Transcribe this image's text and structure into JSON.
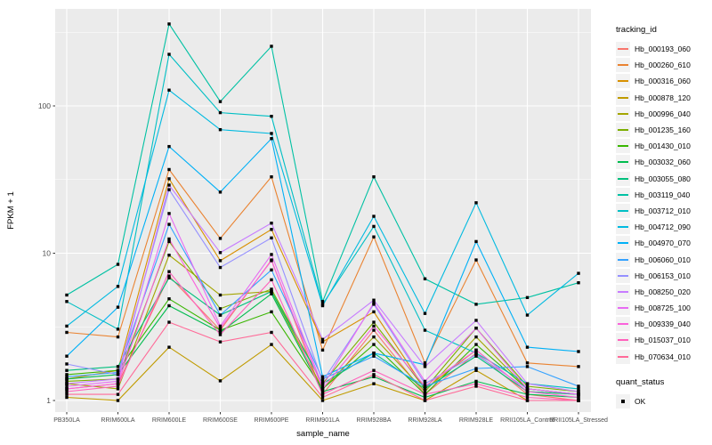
{
  "chart_data": {
    "type": "line",
    "title": "",
    "xlabel": "sample_name",
    "ylabel": "FPKM + 1",
    "y_scale": "log10",
    "y_ticks": [
      1,
      10,
      100
    ],
    "ylim": [
      1,
      455
    ],
    "grid": true,
    "legend_position": "right",
    "panel_background": "#EBEBEB",
    "gridline_color": "#FFFFFF",
    "tick_label_color": "#4d4d4d",
    "point_color": "#000000",
    "legend_title": "tracking_id",
    "categories": [
      "PB350LA",
      "RRIM600LA",
      "RRIM600LE",
      "RRIM600SE",
      "RRIM600PE",
      "RRIM901LA",
      "RRIM928BA",
      "RRIM928LA",
      "RRIM928LE",
      "RRII105LA_Control",
      "RRII105LA_Stressed"
    ],
    "series": [
      {
        "name": "Hb_000193_060",
        "color": "#F8766D",
        "values": [
          1.2,
          1.3,
          7.0,
          3.0,
          9.0,
          1.1,
          3.0,
          1.1,
          2.1,
          1.1,
          1.0
        ]
      },
      {
        "name": "Hb_000260_610",
        "color": "#EA8331",
        "values": [
          2.9,
          2.7,
          37,
          12.6,
          33,
          2.2,
          12.9,
          1.8,
          9.0,
          1.8,
          1.7
        ]
      },
      {
        "name": "Hb_000316_060",
        "color": "#D89000",
        "values": [
          1.4,
          1.6,
          32,
          8.9,
          14.5,
          2.5,
          4.0,
          1.2,
          2.2,
          1.15,
          1.1
        ]
      },
      {
        "name": "Hb_000878_120",
        "color": "#C09B00",
        "values": [
          1.05,
          1.0,
          2.3,
          1.36,
          2.4,
          1.0,
          1.3,
          1.0,
          1.6,
          1.0,
          1.0
        ]
      },
      {
        "name": "Hb_000996_040",
        "color": "#A3A500",
        "values": [
          1.3,
          1.2,
          9.7,
          5.2,
          5.5,
          1.2,
          2.7,
          1.15,
          2.7,
          1.2,
          1.1
        ]
      },
      {
        "name": "Hb_001235_160",
        "color": "#7CAE00",
        "values": [
          1.35,
          1.4,
          12.0,
          4.2,
          5.7,
          1.3,
          3.4,
          1.2,
          3.1,
          1.25,
          1.15
        ]
      },
      {
        "name": "Hb_001430_010",
        "color": "#39B600",
        "values": [
          1.5,
          1.6,
          4.9,
          3.0,
          4.0,
          1.2,
          2.4,
          1.1,
          2.4,
          1.2,
          1.1
        ]
      },
      {
        "name": "Hb_003032_060",
        "color": "#00BB4E",
        "values": [
          1.4,
          1.5,
          4.4,
          2.9,
          5.3,
          1.15,
          1.45,
          1.05,
          1.35,
          1.1,
          1.05
        ]
      },
      {
        "name": "Hb_003055_080",
        "color": "#00BF7D",
        "values": [
          1.6,
          1.7,
          6.8,
          3.8,
          5.5,
          1.3,
          2.1,
          1.2,
          2.0,
          1.15,
          1.1
        ]
      },
      {
        "name": "Hb_003119_040",
        "color": "#00C1A3",
        "values": [
          5.2,
          8.4,
          360,
          107,
          254,
          4.7,
          33,
          6.7,
          4.5,
          5.0,
          6.3
        ]
      },
      {
        "name": "Hb_003712_010",
        "color": "#00BFC4",
        "values": [
          4.7,
          3.05,
          224,
          90,
          85,
          4.5,
          15.2,
          3.0,
          2.1,
          1.3,
          1.2
        ]
      },
      {
        "name": "Hb_004712_090",
        "color": "#00BAE0",
        "values": [
          3.2,
          5.95,
          128,
          69,
          65,
          4.4,
          17.8,
          3.9,
          22,
          3.8,
          7.3
        ]
      },
      {
        "name": "Hb_004970_070",
        "color": "#00B0F6",
        "values": [
          2.0,
          4.3,
          53,
          26,
          60,
          1.45,
          2.1,
          1.75,
          12,
          2.3,
          2.15
        ]
      },
      {
        "name": "Hb_006060_010",
        "color": "#35A2FF",
        "values": [
          1.45,
          1.55,
          15.7,
          3.8,
          7.7,
          1.4,
          2.0,
          1.25,
          1.65,
          1.7,
          1.25
        ]
      },
      {
        "name": "Hb_006153_010",
        "color": "#9590FF",
        "values": [
          1.77,
          1.5,
          27,
          8.0,
          12.7,
          1.35,
          4.5,
          1.3,
          2.05,
          1.2,
          1.1
        ]
      },
      {
        "name": "Hb_008250_020",
        "color": "#C77CFF",
        "values": [
          1.3,
          1.4,
          29,
          10.1,
          16,
          2.6,
          4.8,
          1.7,
          3.5,
          1.3,
          1.15
        ]
      },
      {
        "name": "Hb_008725_100",
        "color": "#E76BF3",
        "values": [
          1.25,
          1.35,
          18.6,
          3.2,
          9.8,
          1.25,
          4.6,
          1.35,
          3.1,
          1.2,
          1.1
        ]
      },
      {
        "name": "Hb_009339_040",
        "color": "#FA62DB",
        "values": [
          1.2,
          1.3,
          12.5,
          3.1,
          8.9,
          1.2,
          3.2,
          1.25,
          2.2,
          1.15,
          1.05
        ]
      },
      {
        "name": "Hb_015037_010",
        "color": "#FF62BC",
        "values": [
          1.15,
          1.25,
          7.5,
          2.8,
          6.6,
          1.1,
          1.6,
          1.1,
          1.3,
          1.05,
          1.0
        ]
      },
      {
        "name": "Hb_070634_010",
        "color": "#FF6A98",
        "values": [
          1.1,
          1.1,
          3.4,
          2.5,
          2.9,
          1.05,
          1.5,
          1.0,
          1.25,
          1.0,
          1.0
        ]
      }
    ],
    "quant_legend": {
      "title": "quant_status",
      "items": [
        {
          "label": "OK",
          "shape": "square",
          "color": "#000000"
        }
      ]
    }
  }
}
